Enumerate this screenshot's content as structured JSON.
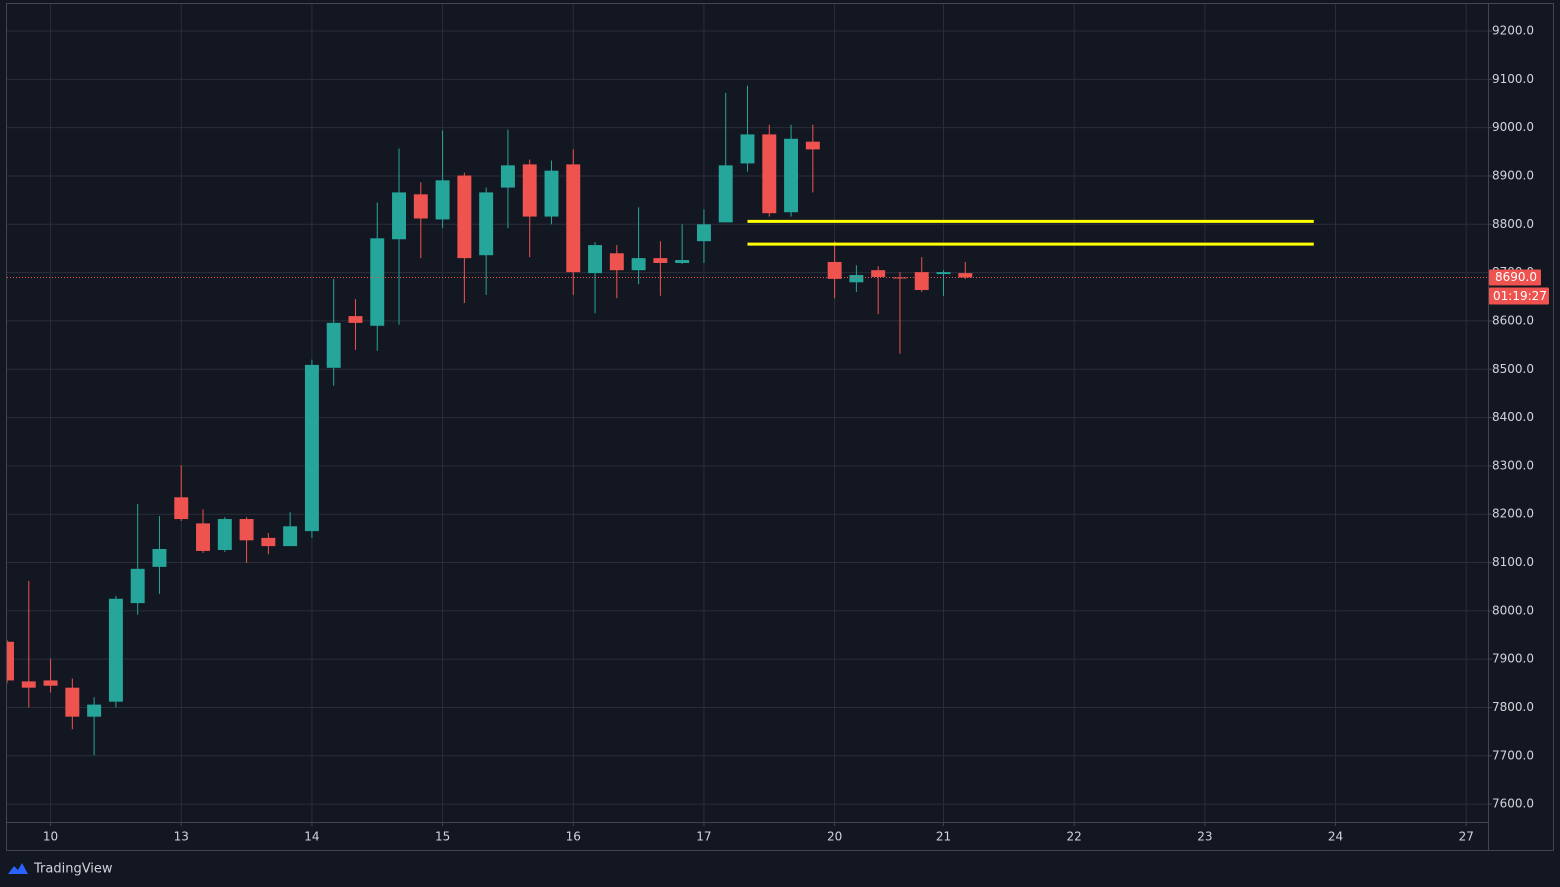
{
  "chart_data": {
    "type": "candlestick",
    "categories": [
      null,
      null,
      null,
      null,
      null,
      null,
      null,
      null,
      null,
      null,
      null,
      null,
      null,
      null,
      null,
      null,
      null,
      null,
      null,
      null,
      null,
      null,
      null,
      null,
      null,
      null,
      null,
      null,
      null,
      null,
      null,
      null,
      null,
      null,
      null,
      null,
      null,
      null,
      null,
      null,
      null,
      null,
      null,
      null,
      null
    ],
    "open": [
      7936,
      7854,
      7856,
      7841,
      7781,
      7812,
      8016,
      8091,
      8235,
      8181,
      8126,
      8190,
      8151,
      8134,
      8165,
      8503,
      8610,
      8590,
      8769,
      8862,
      8810,
      8901,
      8736,
      8876,
      8924,
      8816,
      8924,
      8699,
      8740,
      8705,
      8730,
      8720,
      8765,
      8804,
      8926,
      8986,
      8825,
      8971,
      8722,
      8680,
      8705,
      8690,
      8701,
      8697,
      8699
    ],
    "high": [
      7940,
      8062,
      7901,
      7860,
      7821,
      8031,
      8221,
      8196,
      8301,
      8210,
      8194,
      8194,
      8161,
      8204,
      8520,
      8687,
      8645,
      8845,
      8957,
      8887,
      8994,
      8907,
      8876,
      8996,
      8934,
      8932,
      8955,
      8763,
      8757,
      8835,
      8765,
      8800,
      8831,
      9072,
      9087,
      9006,
      9006,
      9006,
      8765,
      8715,
      8713,
      8701,
      8732,
      8705,
      8722
    ],
    "low": [
      7850,
      7800,
      7831,
      7755,
      7701,
      7800,
      7992,
      8035,
      8186,
      8120,
      8122,
      8099,
      8117,
      8134,
      8151,
      8466,
      8540,
      8538,
      8592,
      8730,
      8792,
      8637,
      8654,
      8792,
      8732,
      8800,
      8654,
      8616,
      8647,
      8676,
      8652,
      8718,
      8720,
      8804,
      8909,
      8816,
      8816,
      8866,
      8647,
      8660,
      8614,
      8532,
      8660,
      8652,
      8687
    ],
    "close": [
      7856,
      7841,
      7845,
      7781,
      7806,
      8025,
      8087,
      8128,
      8190,
      8124,
      8190,
      8146,
      8134,
      8175,
      8509,
      8596,
      8596,
      8771,
      8866,
      8812,
      8891,
      8730,
      8866,
      8922,
      8816,
      8911,
      8701,
      8757,
      8705,
      8730,
      8720,
      8726,
      8800,
      8922,
      8986,
      8823,
      8977,
      8955,
      8687,
      8695,
      8691,
      8688,
      8664,
      8701,
      8690
    ],
    "up_color": "#26a69a",
    "down_color": "#ef5350",
    "xlim": [
      0,
      68
    ],
    "xticks": [
      {
        "value": 2,
        "label": "10"
      },
      {
        "value": 8,
        "label": "13"
      },
      {
        "value": 14,
        "label": "14"
      },
      {
        "value": 20,
        "label": "15"
      },
      {
        "value": 26,
        "label": "16"
      },
      {
        "value": 32,
        "label": "17"
      },
      {
        "value": 38,
        "label": "20"
      },
      {
        "value": 43,
        "label": "21"
      },
      {
        "value": 49,
        "label": "22"
      },
      {
        "value": 55,
        "label": "23"
      },
      {
        "value": 61,
        "label": "24"
      },
      {
        "value": 67,
        "label": "27"
      }
    ],
    "ylim": [
      7563,
      9258
    ],
    "yticks": [
      {
        "value": 7600,
        "label": "7600.0"
      },
      {
        "value": 7700,
        "label": "7700.0"
      },
      {
        "value": 7800,
        "label": "7800.0"
      },
      {
        "value": 7900,
        "label": "7900.0"
      },
      {
        "value": 8000,
        "label": "8000.0"
      },
      {
        "value": 8100,
        "label": "8100.0"
      },
      {
        "value": 8200,
        "label": "8200.0"
      },
      {
        "value": 8300,
        "label": "8300.0"
      },
      {
        "value": 8400,
        "label": "8400.0"
      },
      {
        "value": 8500,
        "label": "8500.0"
      },
      {
        "value": 8600,
        "label": "8600.0"
      },
      {
        "value": 8700,
        "label": "8700.0"
      },
      {
        "value": 8800,
        "label": "8800.0"
      },
      {
        "value": 8900,
        "label": "8900.0"
      },
      {
        "value": 9000,
        "label": "9000.0"
      },
      {
        "value": 9100,
        "label": "9100.0"
      },
      {
        "value": 9200,
        "label": "9200.0"
      }
    ],
    "grid": true,
    "hlines": [
      {
        "y": 8806,
        "x0": 34,
        "x1": 60,
        "color": "#ffff00"
      },
      {
        "y": 8759,
        "x0": 34,
        "x1": 60,
        "color": "#ffff00"
      }
    ],
    "last_price": {
      "value": 8690,
      "label": "8690.0",
      "color": "#ef5350"
    },
    "countdown": "01:19:27"
  },
  "brand": "TradingView"
}
